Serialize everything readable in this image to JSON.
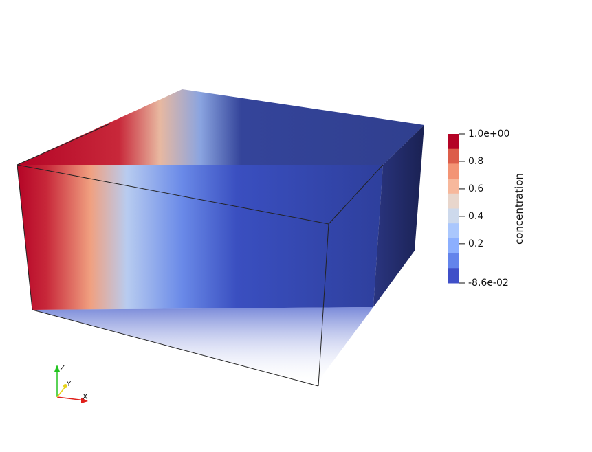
{
  "render": {
    "field": "concentration",
    "colormap": "coolwarm",
    "background": "#ffffff"
  },
  "colorbar": {
    "title": "concentration",
    "range": [
      -0.086,
      1.0
    ],
    "labels": [
      "1.0e+00",
      "0.8",
      "0.6",
      "0.4",
      "0.2",
      "-8.6e-02"
    ],
    "label_values": [
      1.0,
      0.8,
      0.6,
      0.4,
      0.2,
      -0.086
    ],
    "bands": [
      "#b40426",
      "#dc5d4a",
      "#f39475",
      "#f7b89c",
      "#e8d6cc",
      "#cdd9ec",
      "#aac7fd",
      "#8caffe",
      "#6384eb",
      "#3f4fc8"
    ]
  },
  "axes_triad": {
    "x_label": "X",
    "y_label": "Y",
    "z_label": "Z",
    "x_color": "#e0201b",
    "y_color": "#e6d21a",
    "z_color": "#22c31f"
  }
}
